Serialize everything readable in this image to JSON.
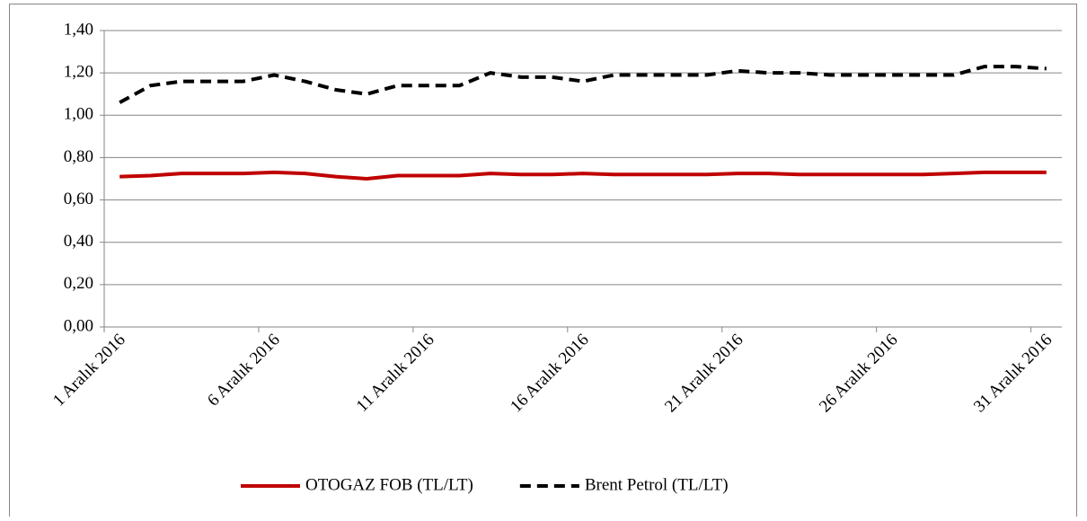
{
  "chart_data": {
    "type": "line",
    "categories": [
      "1 Aralık 2016",
      null,
      null,
      null,
      null,
      "6 Aralık 2016",
      null,
      null,
      null,
      null,
      "11 Aralık 2016",
      null,
      null,
      null,
      null,
      "16 Aralık 2016",
      null,
      null,
      null,
      null,
      "21 Aralık 2016",
      null,
      null,
      null,
      null,
      "26 Aralık 2016",
      null,
      null,
      null,
      null,
      "31 Aralık 2016"
    ],
    "series": [
      {
        "name": "OTOGAZ FOB (TL/LT)",
        "color": "#c00000",
        "dash": "solid",
        "values": [
          0.71,
          0.715,
          0.725,
          0.725,
          0.725,
          0.73,
          0.725,
          0.71,
          0.7,
          0.715,
          0.715,
          0.715,
          0.725,
          0.72,
          0.72,
          0.725,
          0.72,
          0.72,
          0.72,
          0.72,
          0.725,
          0.725,
          0.72,
          0.72,
          0.72,
          0.72,
          0.72,
          0.725,
          0.73,
          0.73,
          0.73
        ]
      },
      {
        "name": "Brent Petrol (TL/LT)",
        "color": "#000000",
        "dash": "dashed",
        "values": [
          1.06,
          1.14,
          1.16,
          1.16,
          1.16,
          1.19,
          1.16,
          1.12,
          1.1,
          1.14,
          1.14,
          1.14,
          1.2,
          1.18,
          1.18,
          1.16,
          1.19,
          1.19,
          1.19,
          1.19,
          1.21,
          1.2,
          1.2,
          1.19,
          1.19,
          1.19,
          1.19,
          1.19,
          1.23,
          1.23,
          1.22
        ]
      }
    ],
    "ylim": [
      0,
      1.4
    ],
    "yticks": [
      {
        "value": 0,
        "label": "0,00"
      },
      {
        "value": 0.2,
        "label": "0,20"
      },
      {
        "value": 0.4,
        "label": "0,40"
      },
      {
        "value": 0.6,
        "label": "0,60"
      },
      {
        "value": 0.8,
        "label": "0,80"
      },
      {
        "value": 1.0,
        "label": "1,00"
      },
      {
        "value": 1.2,
        "label": "1,20"
      },
      {
        "value": 1.4,
        "label": "1,40"
      }
    ],
    "grid": true,
    "legend": "bottom"
  }
}
